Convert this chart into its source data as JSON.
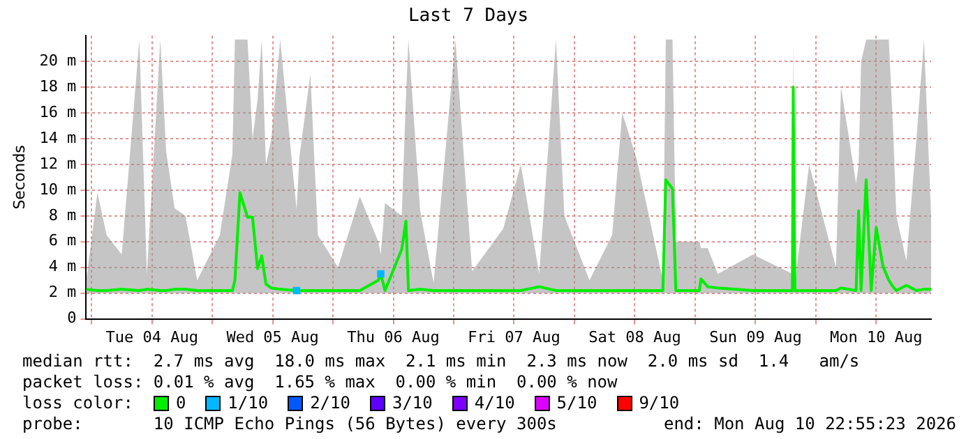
{
  "chart_data": {
    "type": "line",
    "title": "Last 7 Days",
    "ylabel": "Seconds",
    "xlim": [
      "2026-08-03T22:55",
      "2026-08-10T22:55"
    ],
    "xticks": [
      {
        "value": "2026-08-04T00:00",
        "label": null
      },
      {
        "value": "2026-08-04T12:00",
        "label": "Tue 04 Aug"
      },
      {
        "value": "2026-08-05T00:00",
        "label": null
      },
      {
        "value": "2026-08-05T12:00",
        "label": "Wed 05 Aug"
      },
      {
        "value": "2026-08-06T00:00",
        "label": null
      },
      {
        "value": "2026-08-06T12:00",
        "label": "Thu 06 Aug"
      },
      {
        "value": "2026-08-07T00:00",
        "label": null
      },
      {
        "value": "2026-08-07T12:00",
        "label": "Fri 07 Aug"
      },
      {
        "value": "2026-08-08T00:00",
        "label": null
      },
      {
        "value": "2026-08-08T12:00",
        "label": "Sat 08 Aug"
      },
      {
        "value": "2026-08-09T00:00",
        "label": null
      },
      {
        "value": "2026-08-09T12:00",
        "label": "Sun 09 Aug"
      },
      {
        "value": "2026-08-10T00:00",
        "label": null
      },
      {
        "value": "2026-08-10T12:00",
        "label": "Mon 10 Aug"
      }
    ],
    "ylim": [
      0,
      22
    ],
    "yticks": [
      0,
      {
        "value": 2,
        "label": "2 m"
      },
      {
        "value": 4,
        "label": "4 m"
      },
      {
        "value": 6,
        "label": "6 m"
      },
      {
        "value": 8,
        "label": "8 m"
      },
      {
        "value": 10,
        "label": "10 m"
      },
      {
        "value": 12,
        "label": "12 m"
      },
      {
        "value": 14,
        "label": "14 m"
      },
      {
        "value": 16,
        "label": "16 m"
      },
      {
        "value": 18,
        "label": "18 m"
      },
      {
        "value": 20,
        "label": "20 m"
      }
    ],
    "grid": true,
    "legend": "bottom",
    "legend_title": "loss color:",
    "marker": "none",
    "series": [
      {
        "name": "0",
        "color": "#00ee00",
        "x": [
          "2026-08-03T22:55",
          "2026-08-04T01:10",
          "2026-08-04T03:00",
          "2026-08-04T06:00",
          "2026-08-04T09:30",
          "2026-08-04T11:00",
          "2026-08-04T13:40",
          "2026-08-04T14:50",
          "2026-08-04T16:30",
          "2026-08-04T18:40",
          "2026-08-04T21:00",
          "2026-08-05T01:30",
          "2026-08-05T04:00",
          "2026-08-05T04:30",
          "2026-08-05T05:30",
          "2026-08-05T07:00",
          "2026-08-05T08:00",
          "2026-08-05T09:00",
          "2026-08-05T09:50",
          "2026-08-05T10:40",
          "2026-08-05T11:45",
          "2026-08-05T13:30",
          "2026-08-05T16:45",
          "2026-08-05T17:20",
          "2026-08-05T19:30",
          "2026-08-05T21:00",
          "2026-08-06T01:00",
          "2026-08-06T05:20",
          "2026-08-06T09:00",
          "2026-08-06T09:30",
          "2026-08-06T10:20",
          "2026-08-06T13:40",
          "2026-08-06T14:30",
          "2026-08-06T15:00",
          "2026-08-06T17:20",
          "2026-08-06T20:00",
          "2026-08-07T00:20",
          "2026-08-07T03:40",
          "2026-08-07T09:50",
          "2026-08-07T13:20",
          "2026-08-07T17:00",
          "2026-08-07T20:20",
          "2026-08-07T22:00",
          "2026-08-08T03:00",
          "2026-08-08T07:30",
          "2026-08-08T09:30",
          "2026-08-08T12:20",
          "2026-08-08T17:35",
          "2026-08-08T18:10",
          "2026-08-08T19:30",
          "2026-08-08T20:10",
          "2026-08-09T00:50",
          "2026-08-09T01:10",
          "2026-08-09T02:30",
          "2026-08-09T04:30",
          "2026-08-09T11:30",
          "2026-08-09T19:20",
          "2026-08-09T19:30",
          "2026-08-09T19:50",
          "2026-08-09T22:40",
          "2026-08-10T04:00",
          "2026-08-10T05:00",
          "2026-08-10T08:00",
          "2026-08-10T08:30",
          "2026-08-10T09:00",
          "2026-08-10T10:00",
          "2026-08-10T11:00",
          "2026-08-10T12:00",
          "2026-08-10T13:20",
          "2026-08-10T14:30",
          "2026-08-10T15:20",
          "2026-08-10T16:00",
          "2026-08-10T18:00",
          "2026-08-10T20:00",
          "2026-08-10T21:30",
          "2026-08-10T22:55"
        ],
        "values": [
          2.3,
          2.2,
          2.2,
          2.3,
          2.2,
          2.3,
          2.2,
          2.2,
          2.3,
          2.3,
          2.2,
          2.2,
          2.2,
          3.0,
          9.8,
          7.9,
          7.9,
          3.9,
          4.9,
          2.7,
          2.4,
          2.3,
          2.2,
          2.2,
          2.2,
          2.2,
          2.2,
          2.2,
          3.0,
          3.5,
          2.2,
          5.4,
          7.6,
          2.2,
          2.3,
          2.2,
          2.2,
          2.2,
          2.2,
          2.2,
          2.5,
          2.2,
          2.2,
          2.2,
          2.2,
          2.2,
          2.2,
          2.2,
          10.8,
          10.1,
          2.2,
          2.2,
          3.1,
          2.5,
          2.4,
          2.2,
          2.2,
          18.0,
          2.2,
          2.2,
          2.2,
          2.4,
          2.2,
          8.4,
          2.2,
          10.8,
          2.2,
          7.1,
          4.1,
          3.0,
          2.5,
          2.2,
          2.6,
          2.2,
          2.3,
          2.3
        ],
        "lower": [
          2,
          2,
          2,
          2,
          2,
          2,
          2,
          2,
          2,
          2,
          2,
          2,
          2,
          2,
          2,
          2,
          2,
          2,
          2,
          2,
          2,
          2,
          2,
          2,
          2,
          2,
          2,
          2,
          2,
          2,
          2,
          2,
          2,
          2,
          2,
          2,
          2,
          2,
          2,
          2,
          2,
          2,
          2,
          2,
          2,
          2,
          2,
          2,
          2,
          2,
          2,
          2,
          2,
          2,
          2,
          2,
          2,
          2,
          2,
          2,
          2,
          2,
          2,
          2,
          2,
          2,
          2,
          2,
          2,
          2,
          2,
          2,
          2,
          2,
          2,
          2
        ],
        "upper": [
          2.9,
          9.8,
          6.5,
          5.0,
          21.7,
          3.5,
          21.7,
          13.0,
          8.6,
          8.0,
          3.0,
          6.5,
          12.8,
          21.7,
          21.7,
          21.7,
          14.0,
          17.0,
          21.7,
          12.0,
          14.0,
          21.7,
          8.5,
          12.6,
          19.0,
          6.5,
          4.0,
          9.5,
          6.0,
          5.0,
          9.0,
          8.0,
          17.2,
          21.7,
          8.4,
          2.8,
          21.7,
          3.7,
          7.0,
          12.0,
          3.5,
          21.7,
          8.0,
          3.0,
          6.5,
          16.0,
          12.5,
          3.0,
          21.7,
          21.7,
          6.0,
          6.0,
          5.5,
          5.5,
          3.5,
          5.0,
          3.5,
          21.7,
          2.8,
          12.0,
          4.0,
          18.0,
          10.5,
          12.0,
          20.0,
          21.7,
          21.7,
          21.7,
          21.7,
          21.7,
          15.0,
          8.0,
          4.5,
          14.0,
          21.7,
          8.0
        ]
      },
      {
        "name": "1/10",
        "type": "scatter",
        "color": "#00b8ff",
        "marker": "square",
        "x": [
          "2026-08-05T16:45",
          "2026-08-06T09:30"
        ],
        "values": [
          2.2,
          3.5
        ]
      },
      {
        "name": "2/10",
        "type": "scatter",
        "color": "#0059ff",
        "marker": "square"
      },
      {
        "name": "3/10",
        "type": "scatter",
        "color": "#5e00ff",
        "marker": "square"
      },
      {
        "name": "4/10",
        "type": "scatter",
        "color": "#7e00ff",
        "marker": "square"
      },
      {
        "name": "5/10",
        "type": "scatter",
        "color": "#dd00ff",
        "marker": "square"
      },
      {
        "name": "9/10",
        "type": "scatter",
        "color": "#ff0000",
        "marker": "square"
      }
    ],
    "annotations": [
      "median rtt:  2.7 ms avg  18.0 ms max  2.1 ms min  2.3 ms now  2.0 ms sd  1.4   am/s",
      "packet loss: 0.01 % avg  1.65 % max  0.00 % min  0.00 % now",
      "probe:       10 ICMP Echo Pings (56 Bytes) every 300s",
      "end: Mon Aug 10 22:55:23 2026"
    ]
  }
}
